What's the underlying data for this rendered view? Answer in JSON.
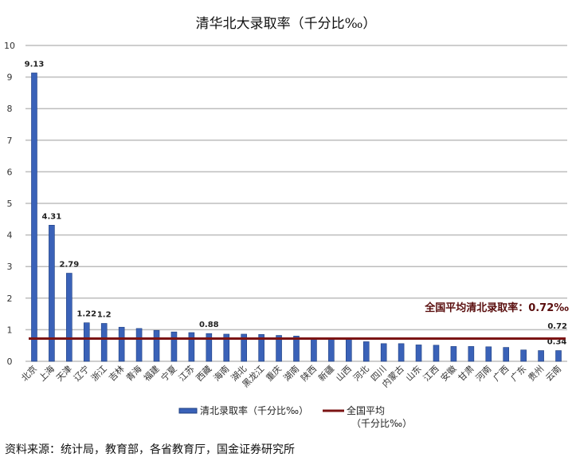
{
  "chart_data": {
    "type": "bar",
    "title": "清华北大录取率（千分比‰）",
    "categories": [
      "北京",
      "上海",
      "天津",
      "辽宁",
      "浙江",
      "吉林",
      "青海",
      "福建",
      "宁夏",
      "江苏",
      "西藏",
      "海南",
      "湖北",
      "黑龙江",
      "重庆",
      "湖南",
      "陕西",
      "新疆",
      "山西",
      "河北",
      "四川",
      "内蒙古",
      "山东",
      "江西",
      "安徽",
      "甘肃",
      "河南",
      "广西",
      "广东",
      "贵州",
      "云南"
    ],
    "series": [
      {
        "name": "清北录取率（千分比‰）",
        "color": "#3a62b8",
        "values": [
          9.13,
          4.31,
          2.79,
          1.22,
          1.2,
          1.08,
          1.04,
          0.98,
          0.93,
          0.91,
          0.88,
          0.86,
          0.86,
          0.85,
          0.82,
          0.8,
          0.72,
          0.7,
          0.7,
          0.62,
          0.56,
          0.56,
          0.52,
          0.51,
          0.47,
          0.47,
          0.46,
          0.44,
          0.36,
          0.34,
          0.34
        ]
      }
    ],
    "reference_line": {
      "name": "全国平均（千分比‰）",
      "value": 0.72,
      "color": "#7b1414",
      "annotation": "全国平均清北录取率：0.72‰",
      "label": "0.72"
    },
    "data_labels": {
      "0": "9.13",
      "1": "4.31",
      "2": "2.79",
      "3": "1.22",
      "4": "1.2",
      "10": "0.88",
      "30": "0.34"
    },
    "yticks": [
      0,
      1,
      2,
      3,
      4,
      5,
      6,
      7,
      8,
      9,
      10
    ],
    "ylim": [
      0,
      10
    ],
    "grid": true,
    "legend": "bottom"
  },
  "source": "资料来源：统计局，教育部，各省教育厅，国金证券研究所"
}
